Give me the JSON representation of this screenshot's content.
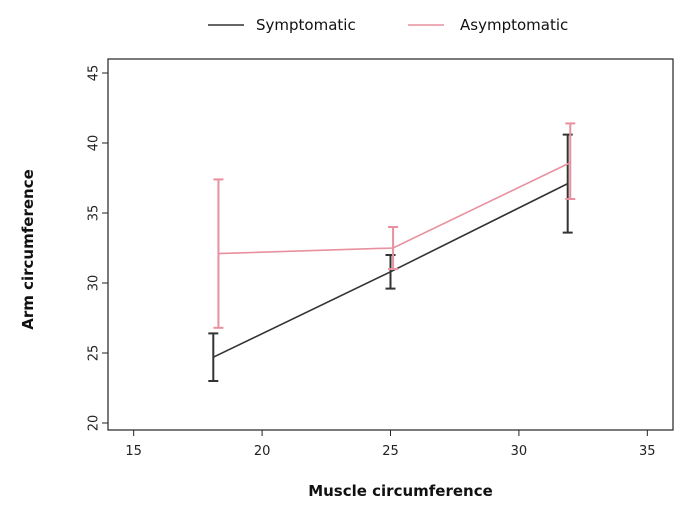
{
  "chart_data": {
    "type": "line",
    "title": "",
    "xlabel": "Muscle circumference",
    "ylabel": "Arm circumference",
    "xlim": [
      14,
      36
    ],
    "ylim": [
      19.5,
      46
    ],
    "xticks": [
      15,
      20,
      25,
      30,
      35
    ],
    "yticks": [
      20,
      25,
      30,
      35,
      40,
      45
    ],
    "grid": false,
    "legend_position": "top",
    "series": [
      {
        "name": "Symptomatic",
        "color": "#333333",
        "x": [
          18.1,
          25.0,
          31.9
        ],
        "y": [
          24.7,
          30.8,
          37.1
        ],
        "err_low": [
          23.0,
          29.6,
          33.6
        ],
        "err_high": [
          26.4,
          32.0,
          40.6
        ]
      },
      {
        "name": "Asymptomatic",
        "color": "#e8909f",
        "x": [
          18.3,
          25.1,
          32.0
        ],
        "y": [
          32.1,
          32.5,
          38.6
        ],
        "err_low": [
          26.8,
          31.0,
          36.0
        ],
        "err_high": [
          37.4,
          34.0,
          41.4
        ]
      }
    ]
  }
}
